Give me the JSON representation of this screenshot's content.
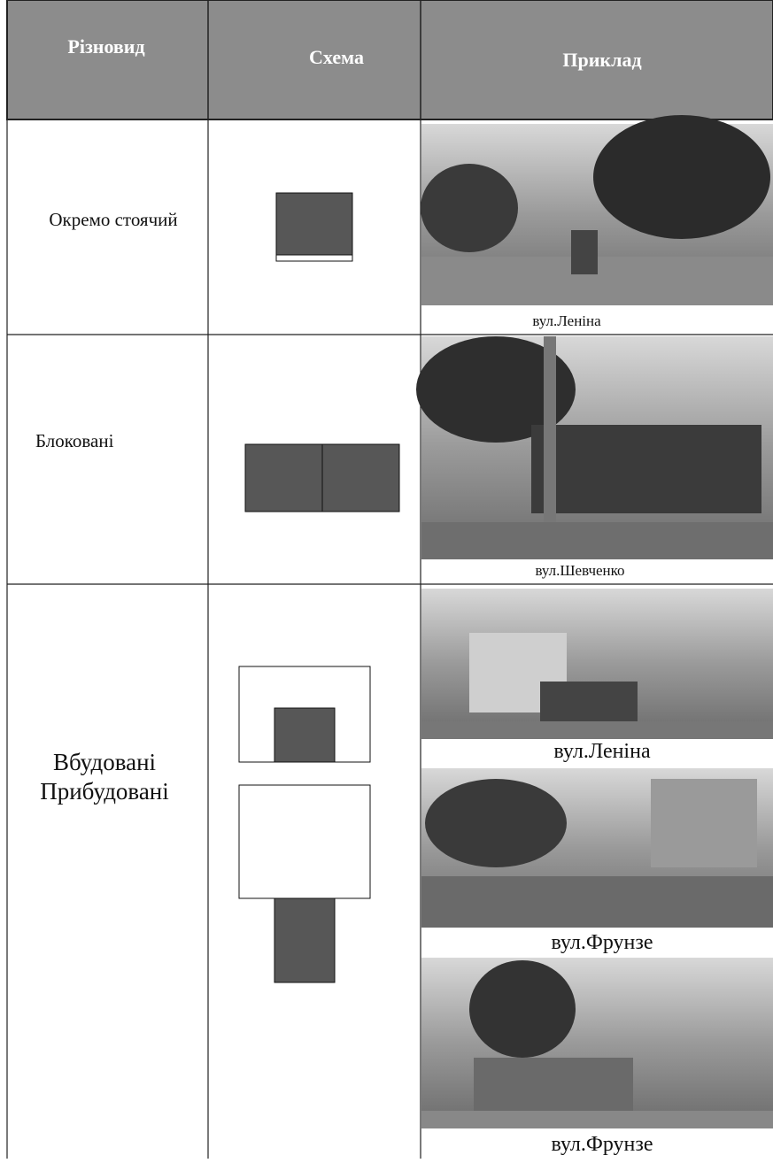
{
  "table": {
    "header": [
      "Різновид",
      "Схема",
      "Приклад"
    ],
    "rows": [
      {
        "type": "Окремо стоячий",
        "captions": [
          "вул.Леніна"
        ]
      },
      {
        "type": "Блоковані",
        "captions": [
          "вул.Шевченко"
        ]
      },
      {
        "type": [
          "Вбудовані",
          "Прибудовані"
        ],
        "captions": [
          "вул.Леніна",
          "вул.Фрунзе",
          "вул.Фрунзе"
        ]
      }
    ]
  }
}
